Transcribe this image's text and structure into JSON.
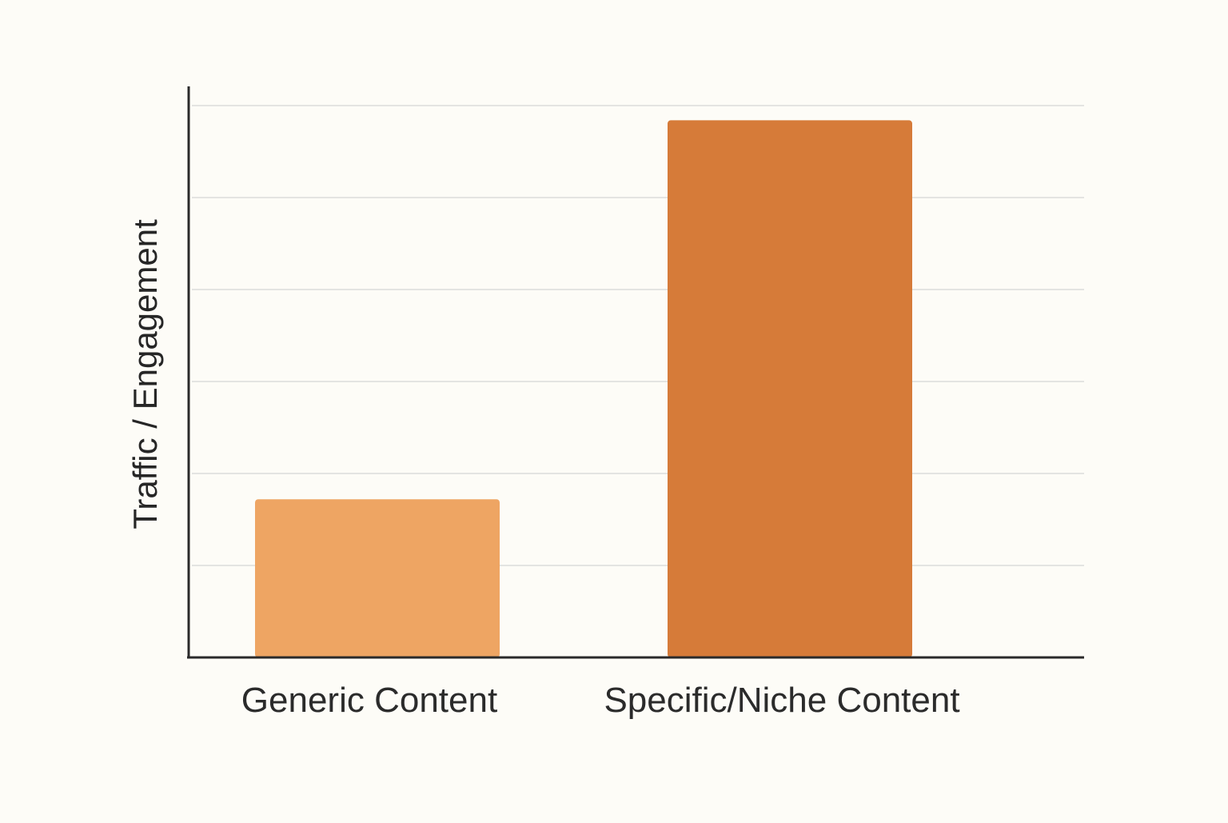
{
  "chart_data": {
    "type": "bar",
    "title": "",
    "xlabel": "",
    "ylabel": "Traffic / Engagement",
    "categories": [
      "Generic Content",
      "Specific/Niche Content"
    ],
    "values": [
      1.72,
      5.84
    ],
    "ylim": [
      0,
      6
    ],
    "grid": true,
    "legend": "none",
    "bar_colors": [
      "#eea563",
      "#d67b39"
    ]
  }
}
